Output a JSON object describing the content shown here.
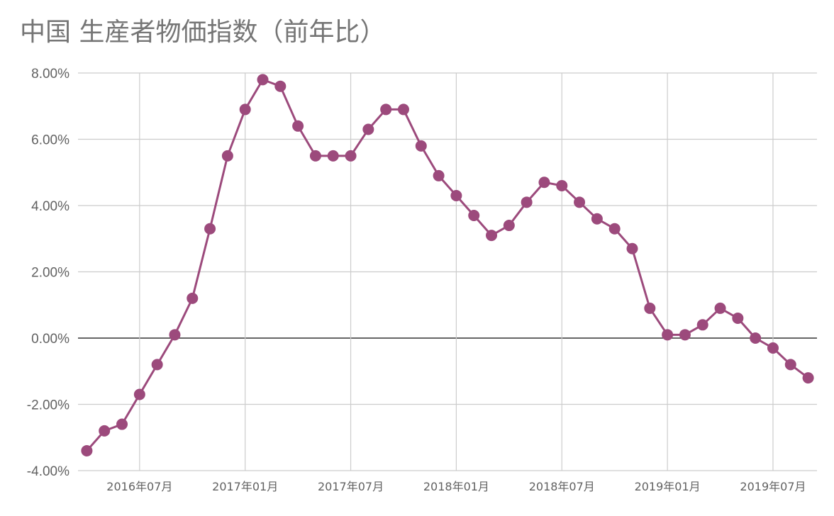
{
  "chart_data": {
    "type": "line",
    "title": "中国 生産者物価指数（前年比）",
    "xlabel": "",
    "ylabel": "",
    "ylim": [
      -4,
      8
    ],
    "y_ticks": [
      8,
      6,
      4,
      2,
      0,
      -2,
      -4
    ],
    "y_tick_labels": [
      "8.00%",
      "6.00%",
      "4.00%",
      "2.00%",
      "0.00%",
      "-2.00%",
      "-4.00%"
    ],
    "x_ticks": [
      "2016-07",
      "2017-01",
      "2017-07",
      "2018-01",
      "2018-07",
      "2019-01",
      "2019-07"
    ],
    "x_tick_labels": [
      "2016年07月",
      "2017年01月",
      "2017年07月",
      "2018年01月",
      "2018年07月",
      "2019年01月",
      "2019年07月"
    ],
    "grid": true,
    "legend": "none",
    "color": "#9c4a7c",
    "series": [
      {
        "x": [
          "2016-04",
          "2016-05",
          "2016-06",
          "2016-07",
          "2016-08",
          "2016-09",
          "2016-10",
          "2016-11",
          "2016-12",
          "2017-01",
          "2017-02",
          "2017-03",
          "2017-04",
          "2017-05",
          "2017-06",
          "2017-07",
          "2017-08",
          "2017-09",
          "2017-10",
          "2017-11",
          "2017-12",
          "2018-01",
          "2018-02",
          "2018-03",
          "2018-04",
          "2018-05",
          "2018-06",
          "2018-07",
          "2018-08",
          "2018-09",
          "2018-10",
          "2018-11",
          "2018-12",
          "2019-01",
          "2019-02",
          "2019-03",
          "2019-04",
          "2019-05",
          "2019-06",
          "2019-07",
          "2019-08",
          "2019-09"
        ],
        "values": [
          -3.4,
          -2.8,
          -2.6,
          -1.7,
          -0.8,
          0.1,
          1.2,
          3.3,
          5.5,
          6.9,
          7.8,
          7.6,
          6.4,
          5.5,
          5.5,
          5.5,
          6.3,
          6.9,
          6.9,
          5.8,
          4.9,
          4.3,
          3.7,
          3.1,
          3.4,
          4.1,
          4.7,
          4.6,
          4.1,
          3.6,
          3.3,
          2.7,
          0.9,
          0.1,
          0.1,
          0.4,
          0.9,
          0.6,
          0.0,
          -0.3,
          -0.8,
          -1.2
        ]
      }
    ]
  }
}
